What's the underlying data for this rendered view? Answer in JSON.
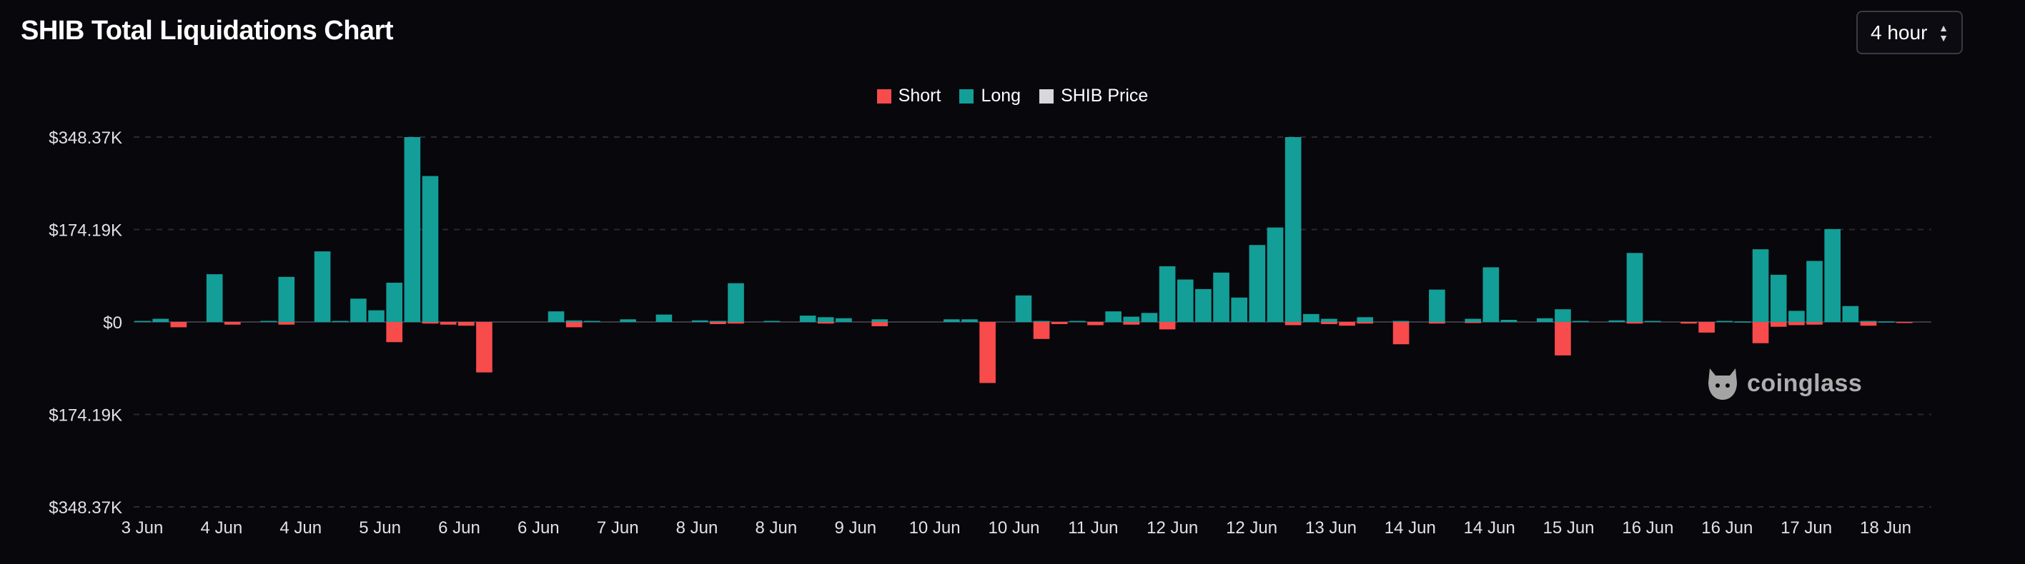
{
  "header": {
    "title": "SHIB Total Liquidations Chart",
    "interval_value": "4 hour"
  },
  "watermark": {
    "text": "coinglass",
    "icon": "cat-head-icon"
  },
  "chart_data": {
    "type": "bar",
    "title": "SHIB Total Liquidations Chart",
    "legend_position": "top-center",
    "grid": true,
    "y_tick_labels": [
      "$348.37K",
      "$174.19K",
      "$0",
      "$174.19K",
      "$348.37K"
    ],
    "y_tick_values": [
      348370,
      174190,
      0,
      -174190,
      -348370
    ],
    "ylim": [
      -348370,
      348370
    ],
    "x_tick_labels": [
      "3 Jun",
      "4 Jun",
      "4 Jun",
      "5 Jun",
      "6 Jun",
      "6 Jun",
      "7 Jun",
      "8 Jun",
      "8 Jun",
      "9 Jun",
      "10 Jun",
      "10 Jun",
      "11 Jun",
      "12 Jun",
      "12 Jun",
      "13 Jun",
      "14 Jun",
      "14 Jun",
      "15 Jun",
      "16 Jun",
      "16 Jun",
      "17 Jun",
      "18 Jun"
    ],
    "series": [
      {
        "name": "Short",
        "color": "#f84b4b",
        "values": [
          0,
          0,
          -10000,
          0,
          0,
          -5000,
          0,
          0,
          -5000,
          0,
          0,
          0,
          0,
          0,
          -38000,
          0,
          -3000,
          -5000,
          -7000,
          -95000,
          0,
          0,
          0,
          0,
          -10000,
          0,
          0,
          0,
          0,
          0,
          0,
          0,
          -4000,
          -3000,
          0,
          0,
          0,
          0,
          -3000,
          0,
          0,
          -8000,
          0,
          0,
          0,
          0,
          0,
          -115000,
          0,
          0,
          -32000,
          -4000,
          0,
          -6000,
          0,
          -5000,
          0,
          -14000,
          0,
          0,
          0,
          0,
          0,
          0,
          -6000,
          0,
          -4000,
          -7000,
          -3000,
          0,
          -42000,
          0,
          -3000,
          0,
          -2000,
          0,
          0,
          0,
          0,
          -63000,
          0,
          0,
          0,
          -3000,
          0,
          0,
          -3000,
          -20000,
          0,
          0,
          -40000,
          -9000,
          -6000,
          -5000,
          0,
          0,
          -7000,
          0,
          -2000,
          0
        ],
        "name_visible": true
      },
      {
        "name": "Long",
        "color": "#139e98",
        "values": [
          2000,
          6000,
          0,
          0,
          90000,
          0,
          0,
          2000,
          85000,
          0,
          133000,
          2000,
          44000,
          22000,
          74000,
          348370,
          275000,
          0,
          0,
          0,
          0,
          0,
          0,
          20000,
          3000,
          2000,
          0,
          5000,
          0,
          14000,
          0,
          3000,
          2000,
          73000,
          0,
          2000,
          0,
          12000,
          9000,
          7000,
          0,
          5000,
          0,
          0,
          0,
          5000,
          5000,
          0,
          0,
          50000,
          2000,
          0,
          2000,
          0,
          20000,
          10000,
          17000,
          105000,
          80000,
          62000,
          93000,
          46000,
          145000,
          178000,
          348370,
          15000,
          6000,
          0,
          9000,
          0,
          2000,
          0,
          61000,
          0,
          6000,
          103000,
          4000,
          0,
          7000,
          24000,
          2000,
          0,
          3000,
          130000,
          2000,
          0,
          0,
          0,
          2000,
          1000,
          137000,
          89000,
          21000,
          115000,
          175000,
          30000,
          2000,
          1000,
          0,
          0
        ],
        "name_visible": true
      },
      {
        "name": "SHIB Price",
        "color": "#d8d8dc",
        "values": [],
        "name_visible": true
      }
    ]
  }
}
